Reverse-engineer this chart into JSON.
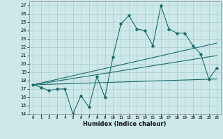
{
  "xlabel": "Humidex (Indice chaleur)",
  "ylabel": "",
  "background_color": "#cce8e8",
  "grid_color": "#aacccc",
  "line_color": "#1a6b6b",
  "xlim": [
    -0.5,
    23.5
  ],
  "ylim": [
    14,
    27.5
  ],
  "yticks": [
    14,
    15,
    16,
    17,
    18,
    19,
    20,
    21,
    22,
    23,
    24,
    25,
    26,
    27
  ],
  "xticks": [
    0,
    1,
    2,
    3,
    4,
    5,
    6,
    7,
    8,
    9,
    10,
    11,
    12,
    13,
    14,
    15,
    16,
    17,
    18,
    19,
    20,
    21,
    22,
    23
  ],
  "main_line_x": [
    0,
    1,
    2,
    3,
    4,
    5,
    6,
    7,
    8,
    9,
    10,
    11,
    12,
    13,
    14,
    15,
    16,
    17,
    18,
    19,
    20,
    21,
    22,
    23
  ],
  "main_line_y": [
    17.5,
    17.2,
    16.8,
    17.0,
    17.0,
    14.0,
    16.2,
    14.8,
    18.5,
    16.0,
    20.8,
    24.8,
    25.8,
    24.2,
    24.0,
    22.2,
    27.0,
    24.2,
    23.7,
    23.7,
    22.2,
    21.2,
    18.2,
    19.5
  ],
  "line2_x": [
    0,
    23
  ],
  "line2_y": [
    17.5,
    22.5
  ],
  "line3_x": [
    0,
    23
  ],
  "line3_y": [
    17.5,
    21.0
  ],
  "line4_x": [
    0,
    23
  ],
  "line4_y": [
    17.5,
    18.2
  ]
}
